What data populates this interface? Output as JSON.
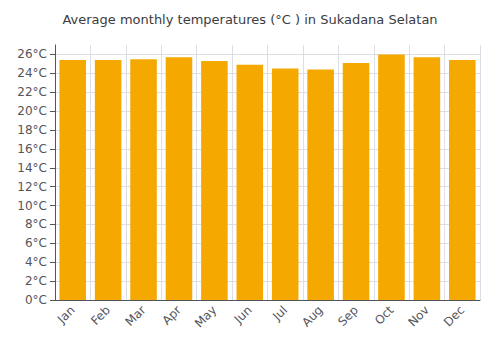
{
  "chart_data": {
    "type": "bar",
    "title": "Average monthly temperatures (°C ) in Sukadana Selatan",
    "categories": [
      "Jan",
      "Feb",
      "Mar",
      "Apr",
      "May",
      "Jun",
      "Jul",
      "Aug",
      "Sep",
      "Oct",
      "Nov",
      "Dec"
    ],
    "values": [
      25.4,
      25.4,
      25.5,
      25.7,
      25.3,
      24.9,
      24.5,
      24.4,
      25.1,
      26.0,
      25.7,
      25.4
    ],
    "color": "#F5A800",
    "ylim": [
      0,
      27
    ],
    "yticks": [
      {
        "value": 0,
        "label": "0°C"
      },
      {
        "value": 2,
        "label": "2°C"
      },
      {
        "value": 4,
        "label": "4°C"
      },
      {
        "value": 6,
        "label": "6°C"
      },
      {
        "value": 8,
        "label": "8°C"
      },
      {
        "value": 10,
        "label": "10°C"
      },
      {
        "value": 12,
        "label": "12°C"
      },
      {
        "value": 14,
        "label": "14°C"
      },
      {
        "value": 16,
        "label": "16°C"
      },
      {
        "value": 18,
        "label": "18°C"
      },
      {
        "value": 20,
        "label": "20°C"
      },
      {
        "value": 22,
        "label": "22°C"
      },
      {
        "value": 24,
        "label": "24°C"
      },
      {
        "value": 26,
        "label": "26°C"
      }
    ],
    "grid": true
  }
}
